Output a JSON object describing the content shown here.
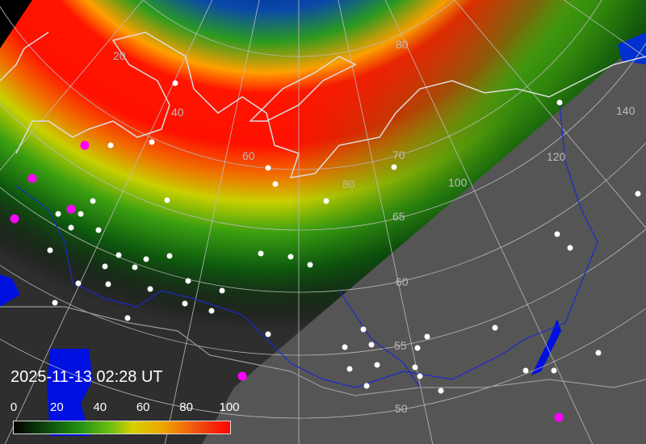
{
  "timestamp": "2025-11-13 02:28 UT",
  "colorbar": {
    "ticks": [
      "0",
      "20",
      "40",
      "60",
      "80",
      "100"
    ],
    "colors": [
      "#000000",
      "#1f8f10",
      "#d8d000",
      "#ff0000"
    ]
  },
  "grid": {
    "latitude_labels": [
      "80",
      "70",
      "65",
      "60",
      "55",
      "50"
    ],
    "longitude_labels": [
      "20",
      "40",
      "60",
      "80",
      "100",
      "120",
      "140"
    ]
  },
  "colors": {
    "night": "#2e2e2e",
    "day": "#555555",
    "water": "#0010e0",
    "coast": "#dddddd",
    "borders": "#1a2acc",
    "city": "#ffffff",
    "station": "#ff00ff"
  }
}
